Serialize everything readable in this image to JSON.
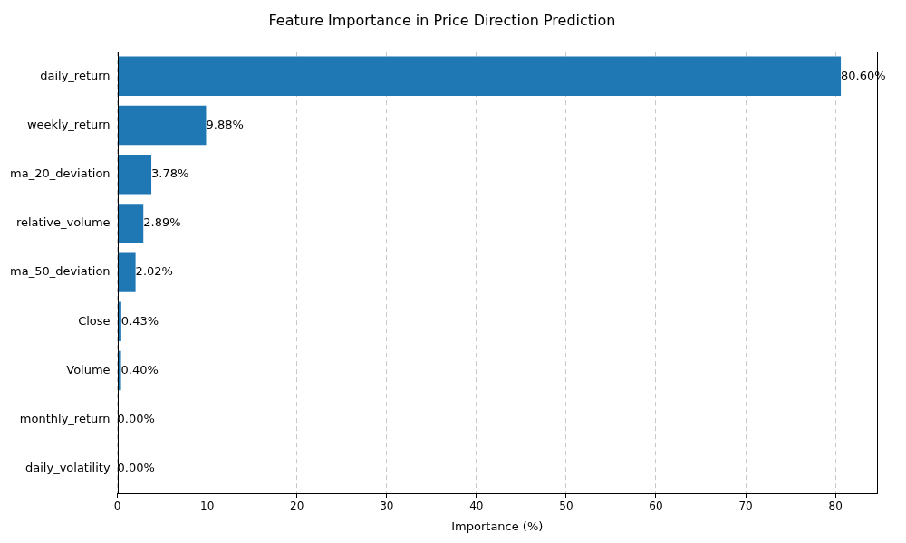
{
  "chart_data": {
    "type": "bar",
    "orientation": "horizontal",
    "title": "Feature Importance in Price Direction Prediction",
    "x_label": "Importance (%)",
    "categories": [
      "daily_return",
      "weekly_return",
      "ma_20_deviation",
      "relative_volume",
      "ma_50_deviation",
      "Close",
      "Volume",
      "monthly_return",
      "daily_volatility"
    ],
    "values": [
      80.6,
      9.88,
      3.78,
      2.89,
      2.02,
      0.43,
      0.4,
      0.0,
      0.0
    ],
    "value_labels": [
      "80.60%",
      "9.88%",
      "3.78%",
      "2.89%",
      "2.02%",
      "0.43%",
      "0.40%",
      "0.00%",
      "0.00%"
    ],
    "data_labels": true,
    "color": "#1f77b4",
    "xlim": [
      0,
      84.63
    ],
    "xticks": [
      0,
      10,
      20,
      30,
      40,
      50,
      60,
      70,
      80
    ],
    "grid": true
  }
}
